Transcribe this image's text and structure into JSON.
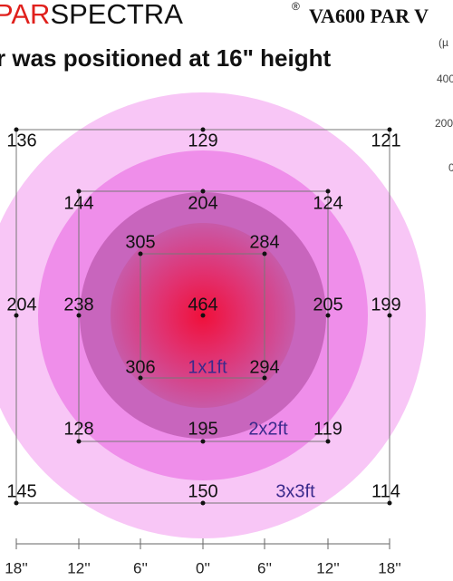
{
  "header": {
    "brand_red": "PAR",
    "brand_black": "SPECTRA",
    "registered": "®",
    "model": "VA600 PAR V",
    "subtitle": "r was positioned at 16\" height"
  },
  "legend": {
    "unit": "(µ",
    "ticks": [
      "400",
      "200",
      "0"
    ]
  },
  "readings": [
    136,
    129,
    121,
    144,
    204,
    124,
    305,
    284,
    204,
    238,
    464,
    205,
    199,
    306,
    294,
    128,
    195,
    119,
    145,
    150,
    114
  ],
  "zones": [
    "1x1ft",
    "2x2ft",
    "3x3ft"
  ],
  "x_axis": [
    "18''",
    "12''",
    "6''",
    "0''",
    "6''",
    "12''",
    "18''"
  ]
}
